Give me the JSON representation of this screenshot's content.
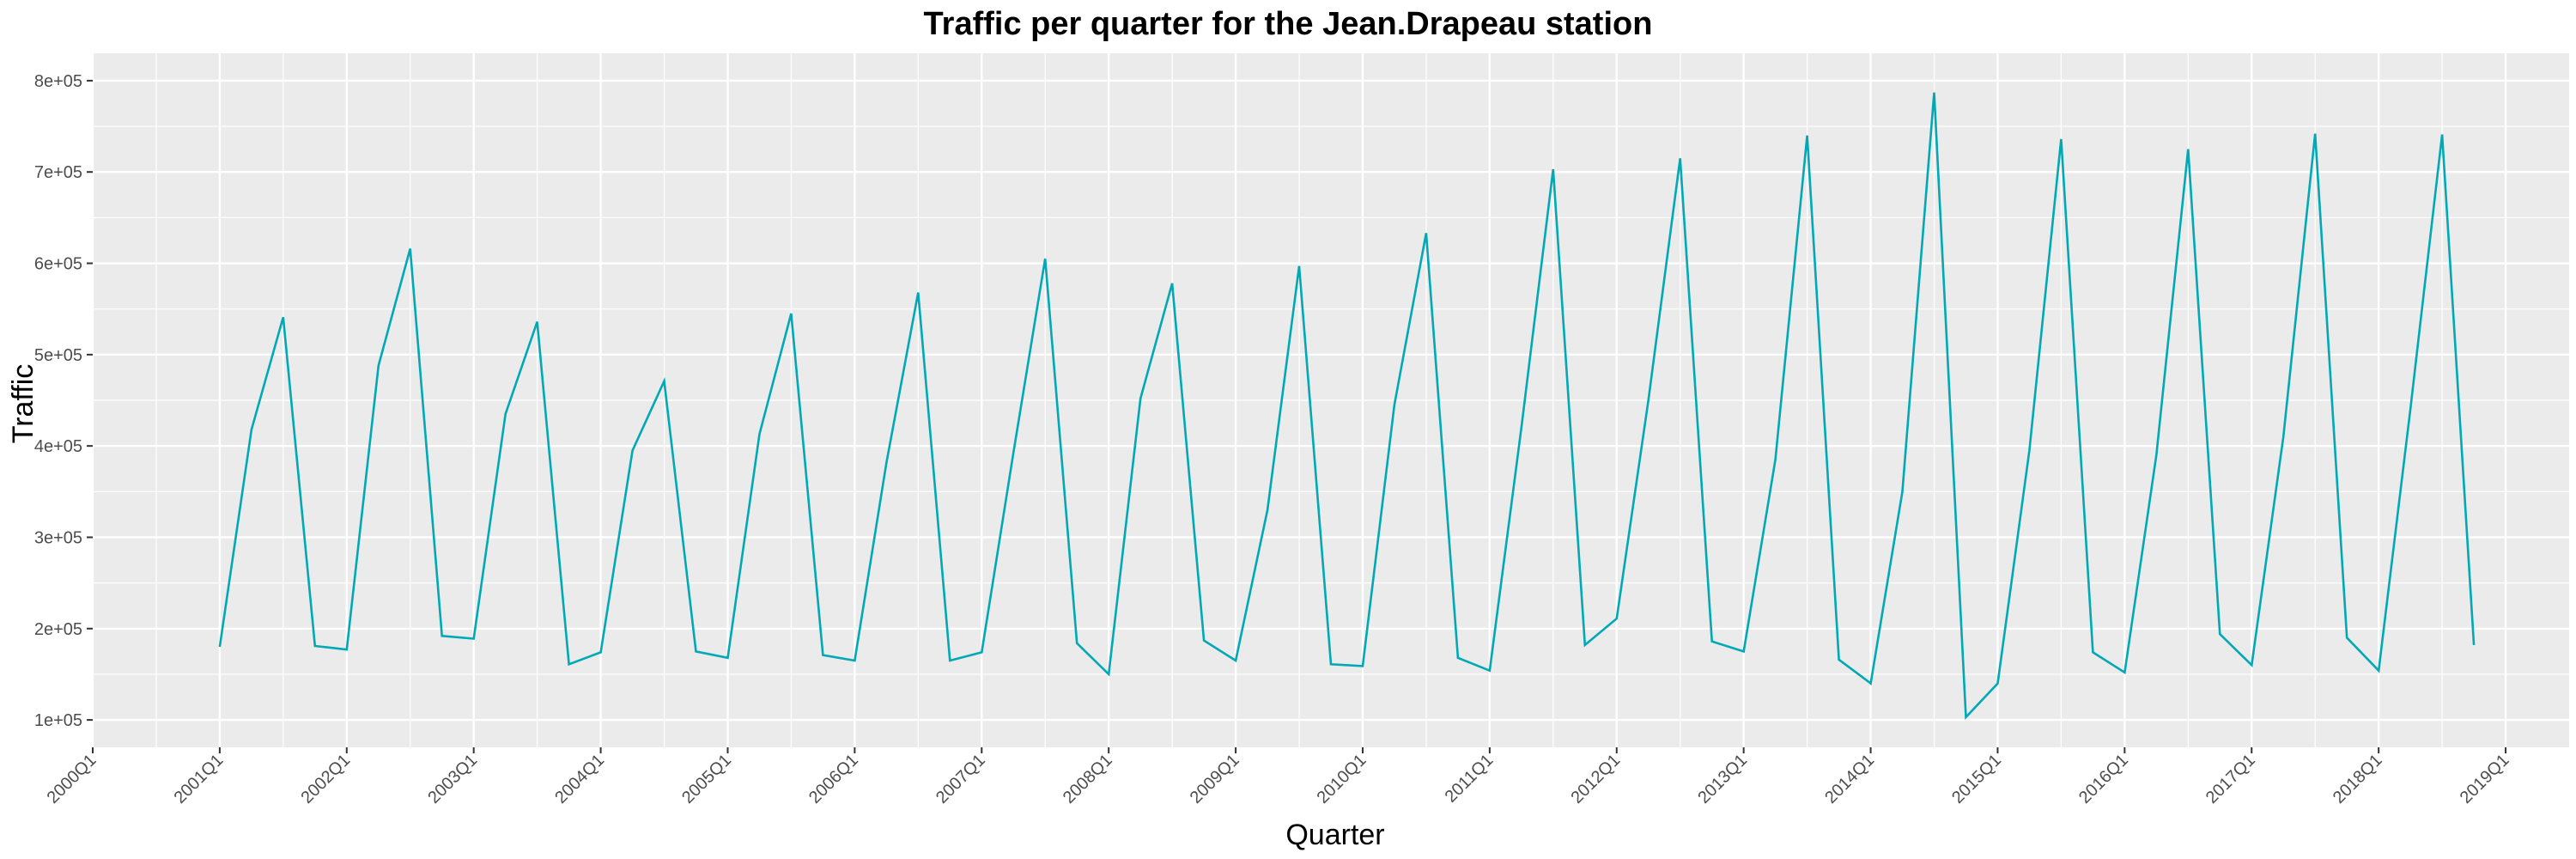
{
  "chart_data": {
    "type": "line",
    "title": "Traffic per quarter for the Jean.Drapeau station",
    "xlabel": "Quarter",
    "ylabel": "Traffic",
    "x_tick_labels": [
      "2000Q1",
      "2001Q1",
      "2002Q1",
      "2003Q1",
      "2004Q1",
      "2005Q1",
      "2006Q1",
      "2007Q1",
      "2008Q1",
      "2009Q1",
      "2010Q1",
      "2011Q1",
      "2012Q1",
      "2013Q1",
      "2014Q1",
      "2015Q1",
      "2016Q1",
      "2017Q1",
      "2018Q1",
      "2019Q1"
    ],
    "y_tick_labels": [
      "1e+05",
      "2e+05",
      "3e+05",
      "4e+05",
      "5e+05",
      "6e+05",
      "7e+05",
      "8e+05"
    ],
    "y_ticks": [
      100000,
      200000,
      300000,
      400000,
      500000,
      600000,
      700000,
      800000
    ],
    "ylim": [
      70000,
      830000
    ],
    "xlim": [
      "2000Q1",
      "2019Q3"
    ],
    "grid": true,
    "line_color": "#00A9B5",
    "panel_color": "#EBEBEB",
    "x": [
      "2001Q1",
      "2001Q2",
      "2001Q3",
      "2001Q4",
      "2002Q1",
      "2002Q2",
      "2002Q3",
      "2002Q4",
      "2003Q1",
      "2003Q2",
      "2003Q3",
      "2003Q4",
      "2004Q1",
      "2004Q2",
      "2004Q3",
      "2004Q4",
      "2005Q1",
      "2005Q2",
      "2005Q3",
      "2005Q4",
      "2006Q1",
      "2006Q2",
      "2006Q3",
      "2006Q4",
      "2007Q1",
      "2007Q2",
      "2007Q3",
      "2007Q4",
      "2008Q1",
      "2008Q2",
      "2008Q3",
      "2008Q4",
      "2009Q1",
      "2009Q2",
      "2009Q3",
      "2009Q4",
      "2010Q1",
      "2010Q2",
      "2010Q3",
      "2010Q4",
      "2011Q1",
      "2011Q2",
      "2011Q3",
      "2011Q4",
      "2012Q1",
      "2012Q2",
      "2012Q3",
      "2012Q4",
      "2013Q1",
      "2013Q2",
      "2013Q3",
      "2013Q4",
      "2014Q1",
      "2014Q2",
      "2014Q3",
      "2014Q4",
      "2015Q1",
      "2015Q2",
      "2015Q3",
      "2015Q4",
      "2016Q1",
      "2016Q2",
      "2016Q3",
      "2016Q4",
      "2017Q1",
      "2017Q2",
      "2017Q3",
      "2017Q4",
      "2018Q1",
      "2018Q2",
      "2018Q3",
      "2018Q4"
    ],
    "values": [
      180000,
      418000,
      541000,
      181000,
      177000,
      488000,
      616000,
      192000,
      189000,
      435000,
      536000,
      161000,
      174000,
      395000,
      471000,
      175000,
      168000,
      413000,
      545000,
      171000,
      165000,
      382000,
      568000,
      165000,
      174000,
      393000,
      605000,
      184000,
      150000,
      452000,
      578000,
      187000,
      165000,
      330000,
      597000,
      161000,
      159000,
      445000,
      633000,
      168000,
      154000,
      420000,
      703000,
      182000,
      211000,
      450000,
      715000,
      186000,
      175000,
      385000,
      740000,
      166000,
      140000,
      350000,
      787000,
      103000,
      140000,
      395000,
      736000,
      174000,
      152000,
      390000,
      725000,
      194000,
      160000,
      410000,
      742000,
      190000,
      154000,
      440000,
      741000,
      182000
    ]
  }
}
